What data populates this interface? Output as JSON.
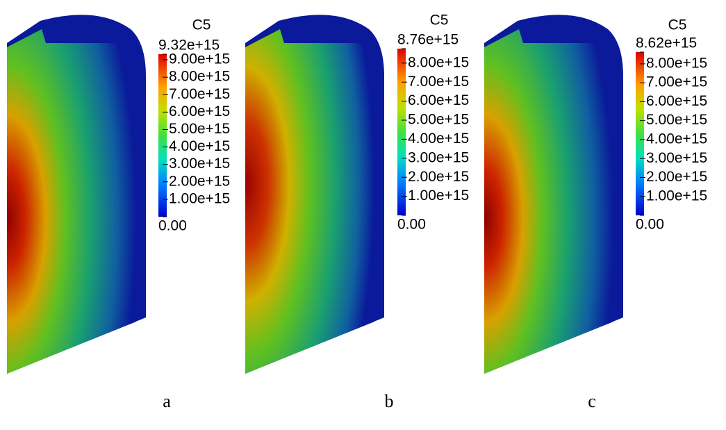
{
  "panels": [
    {
      "label": "a",
      "colorbar": {
        "title": "C5",
        "max": {
          "value": 9320000000000000.0,
          "label": "9.32e+15"
        },
        "min": {
          "value": 0,
          "label": "0.00"
        },
        "ticks": [
          {
            "value": 9000000000000000.0,
            "label": "9.00e+15"
          },
          {
            "value": 8000000000000000.0,
            "label": "8.00e+15"
          },
          {
            "value": 7000000000000000.0,
            "label": "7.00e+15"
          },
          {
            "value": 6000000000000000.0,
            "label": "6.00e+15"
          },
          {
            "value": 5000000000000000.0,
            "label": "5.00e+15"
          },
          {
            "value": 4000000000000000.0,
            "label": "4.00e+15"
          },
          {
            "value": 3000000000000000.0,
            "label": "3.00e+15"
          },
          {
            "value": 2000000000000000.0,
            "label": "2.00e+15"
          },
          {
            "value": 1000000000000000.0,
            "label": "1.00e+15"
          }
        ]
      }
    },
    {
      "label": "b",
      "colorbar": {
        "title": "C5",
        "max": {
          "value": 8760000000000000.0,
          "label": "8.76e+15"
        },
        "min": {
          "value": 0,
          "label": "0.00"
        },
        "ticks": [
          {
            "value": 8000000000000000.0,
            "label": "8.00e+15"
          },
          {
            "value": 7000000000000000.0,
            "label": "7.00e+15"
          },
          {
            "value": 6000000000000000.0,
            "label": "6.00e+15"
          },
          {
            "value": 5000000000000000.0,
            "label": "5.00e+15"
          },
          {
            "value": 4000000000000000.0,
            "label": "4.00e+15"
          },
          {
            "value": 3000000000000000.0,
            "label": "3.00e+15"
          },
          {
            "value": 2000000000000000.0,
            "label": "2.00e+15"
          },
          {
            "value": 1000000000000000.0,
            "label": "1.00e+15"
          }
        ]
      }
    },
    {
      "label": "c",
      "colorbar": {
        "title": "C5",
        "max": {
          "value": 8620000000000000.0,
          "label": "8.62e+15"
        },
        "min": {
          "value": 0,
          "label": "0.00"
        },
        "ticks": [
          {
            "value": 8000000000000000.0,
            "label": "8.00e+15"
          },
          {
            "value": 7000000000000000.0,
            "label": "7.00e+15"
          },
          {
            "value": 6000000000000000.0,
            "label": "6.00e+15"
          },
          {
            "value": 5000000000000000.0,
            "label": "5.00e+15"
          },
          {
            "value": 4000000000000000.0,
            "label": "4.00e+15"
          },
          {
            "value": 3000000000000000.0,
            "label": "3.00e+15"
          },
          {
            "value": 2000000000000000.0,
            "label": "2.00e+15"
          },
          {
            "value": 1000000000000000.0,
            "label": "1.00e+15"
          }
        ]
      }
    }
  ]
}
